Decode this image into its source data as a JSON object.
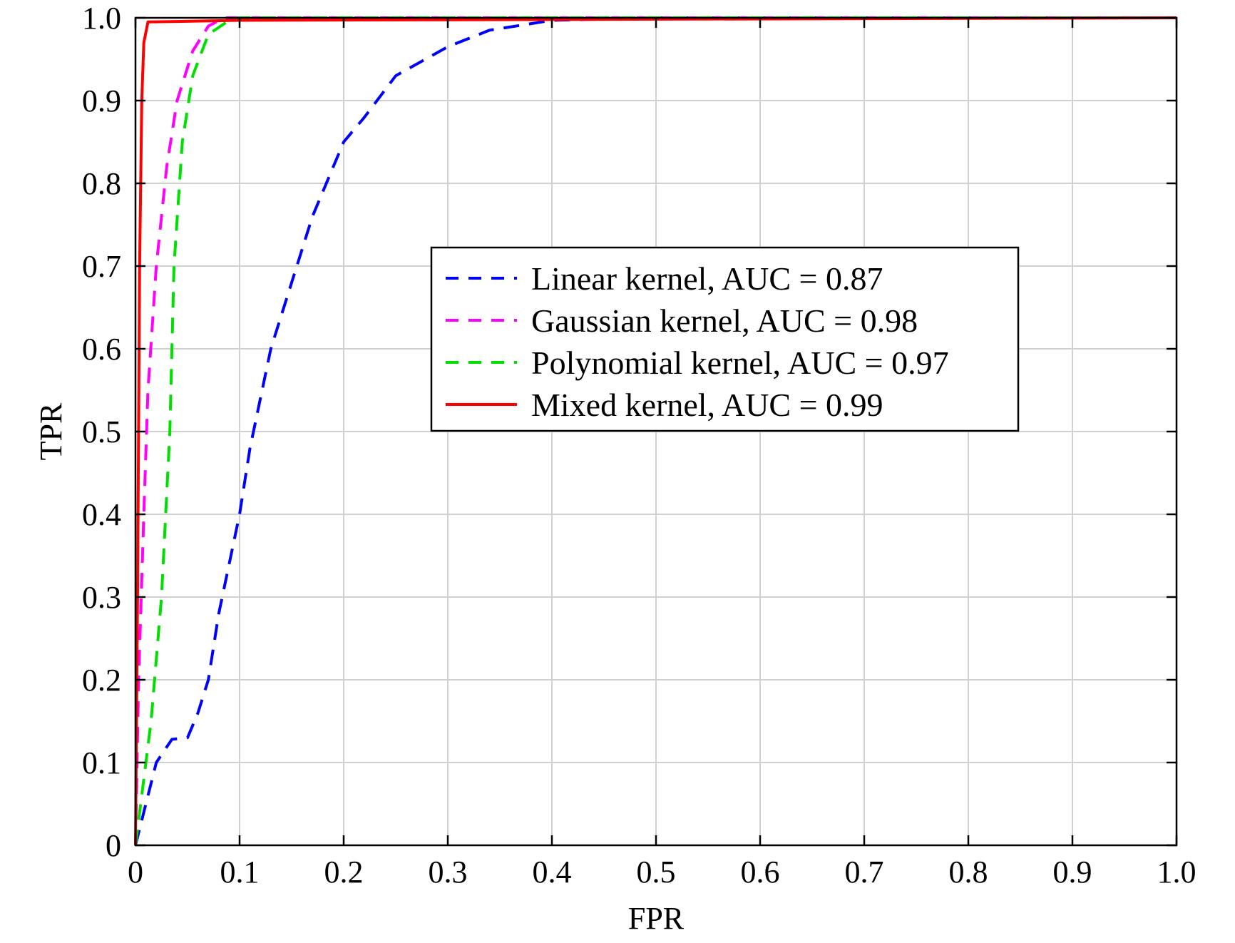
{
  "chart_data": {
    "type": "line",
    "title": "",
    "xlabel": "FPR",
    "ylabel": "TPR",
    "xlim": [
      0,
      1
    ],
    "ylim": [
      0,
      1
    ],
    "grid": true,
    "legend_position": "center-right",
    "xticks": [
      "0",
      "0.1",
      "0.2",
      "0.3",
      "0.4",
      "0.5",
      "0.6",
      "0.7",
      "0.8",
      "0.9",
      "1.0"
    ],
    "yticks": [
      "0",
      "0.1",
      "0.2",
      "0.3",
      "0.4",
      "0.5",
      "0.6",
      "0.7",
      "0.8",
      "0.9",
      "1.0"
    ],
    "series": [
      {
        "name": "Linear kernel, AUC = 0.87",
        "color": "#0000ff",
        "dash": "dashed",
        "x": [
          0,
          0.01,
          0.02,
          0.035,
          0.05,
          0.06,
          0.07,
          0.08,
          0.1,
          0.11,
          0.13,
          0.15,
          0.17,
          0.2,
          0.22,
          0.25,
          0.3,
          0.34,
          0.4,
          0.5,
          1
        ],
        "y": [
          0,
          0.05,
          0.1,
          0.128,
          0.13,
          0.16,
          0.2,
          0.28,
          0.4,
          0.48,
          0.6,
          0.68,
          0.76,
          0.85,
          0.88,
          0.93,
          0.965,
          0.985,
          0.997,
          1,
          1
        ]
      },
      {
        "name": "Gaussian kernel, AUC = 0.98",
        "color": "#ff00ff",
        "dash": "dashed",
        "x": [
          0,
          0.003,
          0.008,
          0.012,
          0.02,
          0.03,
          0.04,
          0.055,
          0.07,
          0.085,
          1
        ],
        "y": [
          0,
          0.2,
          0.4,
          0.55,
          0.7,
          0.82,
          0.9,
          0.96,
          0.99,
          1,
          1
        ]
      },
      {
        "name": "Polynomial kernel, AUC = 0.97",
        "color": "#00e000",
        "dash": "dashed",
        "x": [
          0,
          0.005,
          0.015,
          0.025,
          0.033,
          0.037,
          0.045,
          0.055,
          0.07,
          0.09,
          0.1,
          1
        ],
        "y": [
          0,
          0.05,
          0.15,
          0.3,
          0.5,
          0.7,
          0.85,
          0.93,
          0.98,
          0.997,
          1,
          1
        ]
      },
      {
        "name": "Mixed kernel, AUC = 0.99",
        "color": "#ff0000",
        "dash": "solid",
        "x": [
          0,
          0.002,
          0.004,
          0.006,
          0.008,
          0.012,
          0.1,
          1
        ],
        "y": [
          0,
          0.3,
          0.7,
          0.9,
          0.97,
          0.995,
          0.997,
          1
        ]
      }
    ]
  }
}
